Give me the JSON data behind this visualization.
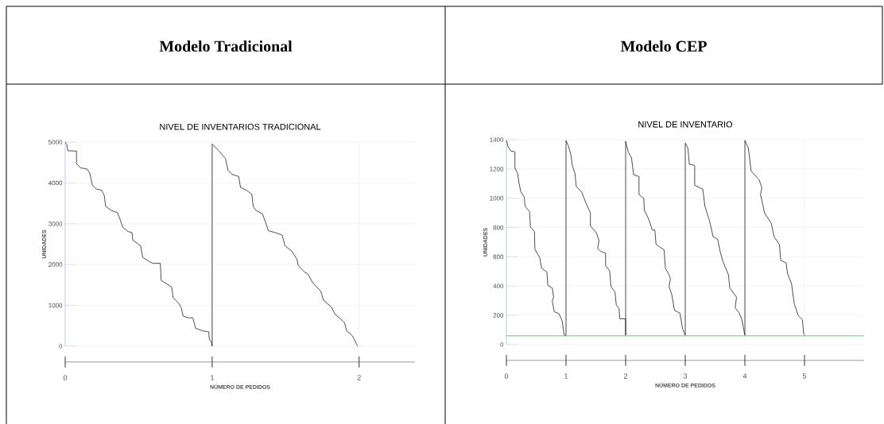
{
  "chart_data": [
    {
      "type": "line",
      "title": "Modelo Tradicional",
      "subtitle": "NIVEL DE INVENTARIOS TRADICIONAL",
      "xlabel": "NÚMERO DE PEDIDOS",
      "ylabel": "UNIDADES",
      "xlim": [
        0,
        2.38
      ],
      "xticks": [
        0,
        1,
        2
      ],
      "ylim": [
        0,
        5000
      ],
      "yticks": [
        0,
        1000,
        2000,
        3000,
        4000,
        5000
      ],
      "grid": true,
      "marker": "none",
      "line_style": "solid",
      "series": [
        {
          "color": "#000000",
          "x": [
            0,
            0.01,
            0.018,
            0.077,
            0.077,
            0.104,
            0.149,
            0.167,
            0.185,
            0.212,
            0.248,
            0.266,
            0.275,
            0.311,
            0.356,
            0.374,
            0.392,
            0.428,
            0.455,
            0.46,
            0.491,
            0.514,
            0.527,
            0.572,
            0.599,
            0.647,
            0.653,
            0.698,
            0.725,
            0.734,
            0.77,
            0.788,
            0.802,
            0.833,
            0.869,
            0.887,
            0.932,
            0.977,
            0.98,
            0.995,
            1,
            1,
            1.045,
            1.09,
            1.108,
            1.135,
            1.18,
            1.193,
            1.234,
            1.27,
            1.279,
            1.297,
            1.342,
            1.369,
            1.382,
            1.432,
            1.477,
            1.495,
            1.541,
            1.577,
            1.586,
            1.631,
            1.649,
            1.685,
            1.739,
            1.757,
            1.811,
            1.838,
            1.865,
            1.901,
            1.914,
            1.955,
            1.99
          ],
          "values": [
            5000,
            4950,
            4790,
            4780,
            4470,
            4370,
            4340,
            4240,
            3950,
            3850,
            3820,
            3690,
            3430,
            3330,
            3270,
            3100,
            2910,
            2810,
            2780,
            2600,
            2520,
            2450,
            2180,
            2070,
            2030,
            2030,
            1610,
            1510,
            1450,
            1190,
            1060,
            960,
            740,
            700,
            690,
            440,
            380,
            350,
            180,
            90,
            0,
            4950,
            4790,
            4600,
            4310,
            4210,
            4160,
            3890,
            3820,
            3720,
            3430,
            3330,
            3240,
            2980,
            2830,
            2780,
            2720,
            2460,
            2330,
            2130,
            1970,
            1810,
            1780,
            1550,
            1350,
            1130,
            960,
            770,
            700,
            570,
            380,
            250,
            0
          ]
        }
      ]
    },
    {
      "type": "line",
      "title": "Modelo CEP",
      "subtitle": "NIVEL DE INVENTARIO",
      "xlabel": "NÚMERO DE PEDIDOS",
      "ylabel": "UNIDADES",
      "xlim": [
        0,
        6
      ],
      "xticks": [
        0,
        1,
        2,
        3,
        4,
        5
      ],
      "ylim": [
        0,
        1400
      ],
      "yticks": [
        0,
        200,
        400,
        600,
        800,
        1000,
        1200,
        1400
      ],
      "grid": true,
      "marker": "none",
      "line_style": "solid",
      "ref_lines": [
        {
          "axis": "y",
          "value": 60,
          "color": "#5cc27a"
        }
      ],
      "series": [
        {
          "color": "#000000",
          "x": [
            0,
            0.03,
            0.076,
            0.143,
            0.143,
            0.188,
            0.21,
            0.242,
            0.3,
            0.313,
            0.389,
            0.403,
            0.47,
            0.479,
            0.559,
            0.591,
            0.68,
            0.694,
            0.77,
            0.792,
            0.77,
            0.801,
            0.881,
            0.935,
            0.97,
            1,
            1,
            1.038,
            1.083,
            1.105,
            1.15,
            1.172,
            1.262,
            1.329,
            1.409,
            1.409,
            1.508,
            1.553,
            1.53,
            1.575,
            1.664,
            1.664,
            1.732,
            1.754,
            1.821,
            1.843,
            1.888,
            1.902,
            2,
            2,
            2,
            2.045,
            2.098,
            2.134,
            2.224,
            2.224,
            2.304,
            2.313,
            2.38,
            2.447,
            2.49,
            2.51,
            2.644,
            2.667,
            2.728,
            2.751,
            2.728,
            2.774,
            2.819,
            2.91,
            2.955,
            3,
            3,
            3.045,
            3.068,
            3.158,
            3.158,
            3.294,
            3.33,
            3.407,
            3.466,
            3.543,
            3.588,
            3.633,
            3.724,
            3.747,
            3.86,
            3.837,
            3.905,
            3.95,
            3.995,
            4,
            4,
            4.059,
            4.104,
            4.24,
            4.285,
            4.262,
            4.33,
            4.443,
            4.489,
            4.579,
            4.602,
            4.692,
            4.715,
            4.783,
            4.828,
            4.896,
            4.964,
            4.986,
            5.009
          ],
          "values": [
            1395,
            1350,
            1323,
            1317,
            1206,
            1170,
            1107,
            1044,
            1008,
            945,
            909,
            801,
            774,
            651,
            594,
            522,
            495,
            405,
            387,
            324,
            297,
            225,
            212,
            162,
            63,
            63,
            1395,
            1359,
            1296,
            1224,
            1170,
            1080,
            1044,
            972,
            900,
            810,
            765,
            711,
            657,
            639,
            624,
            540,
            504,
            396,
            360,
            270,
            248,
            176,
            176,
            63,
            1389,
            1314,
            1278,
            1161,
            1148,
            1026,
            999,
            918,
            864,
            783,
            783,
            684,
            648,
            522,
            477,
            450,
            396,
            342,
            234,
            216,
            108,
            63,
            1377,
            1341,
            1233,
            1224,
            1089,
            1062,
            945,
            846,
            738,
            720,
            630,
            567,
            477,
            387,
            324,
            252,
            216,
            171,
            72,
            63,
            1395,
            1341,
            1188,
            1125,
            1071,
            1026,
            900,
            828,
            738,
            684,
            576,
            558,
            486,
            414,
            279,
            198,
            171,
            72,
            63
          ]
        }
      ]
    }
  ]
}
